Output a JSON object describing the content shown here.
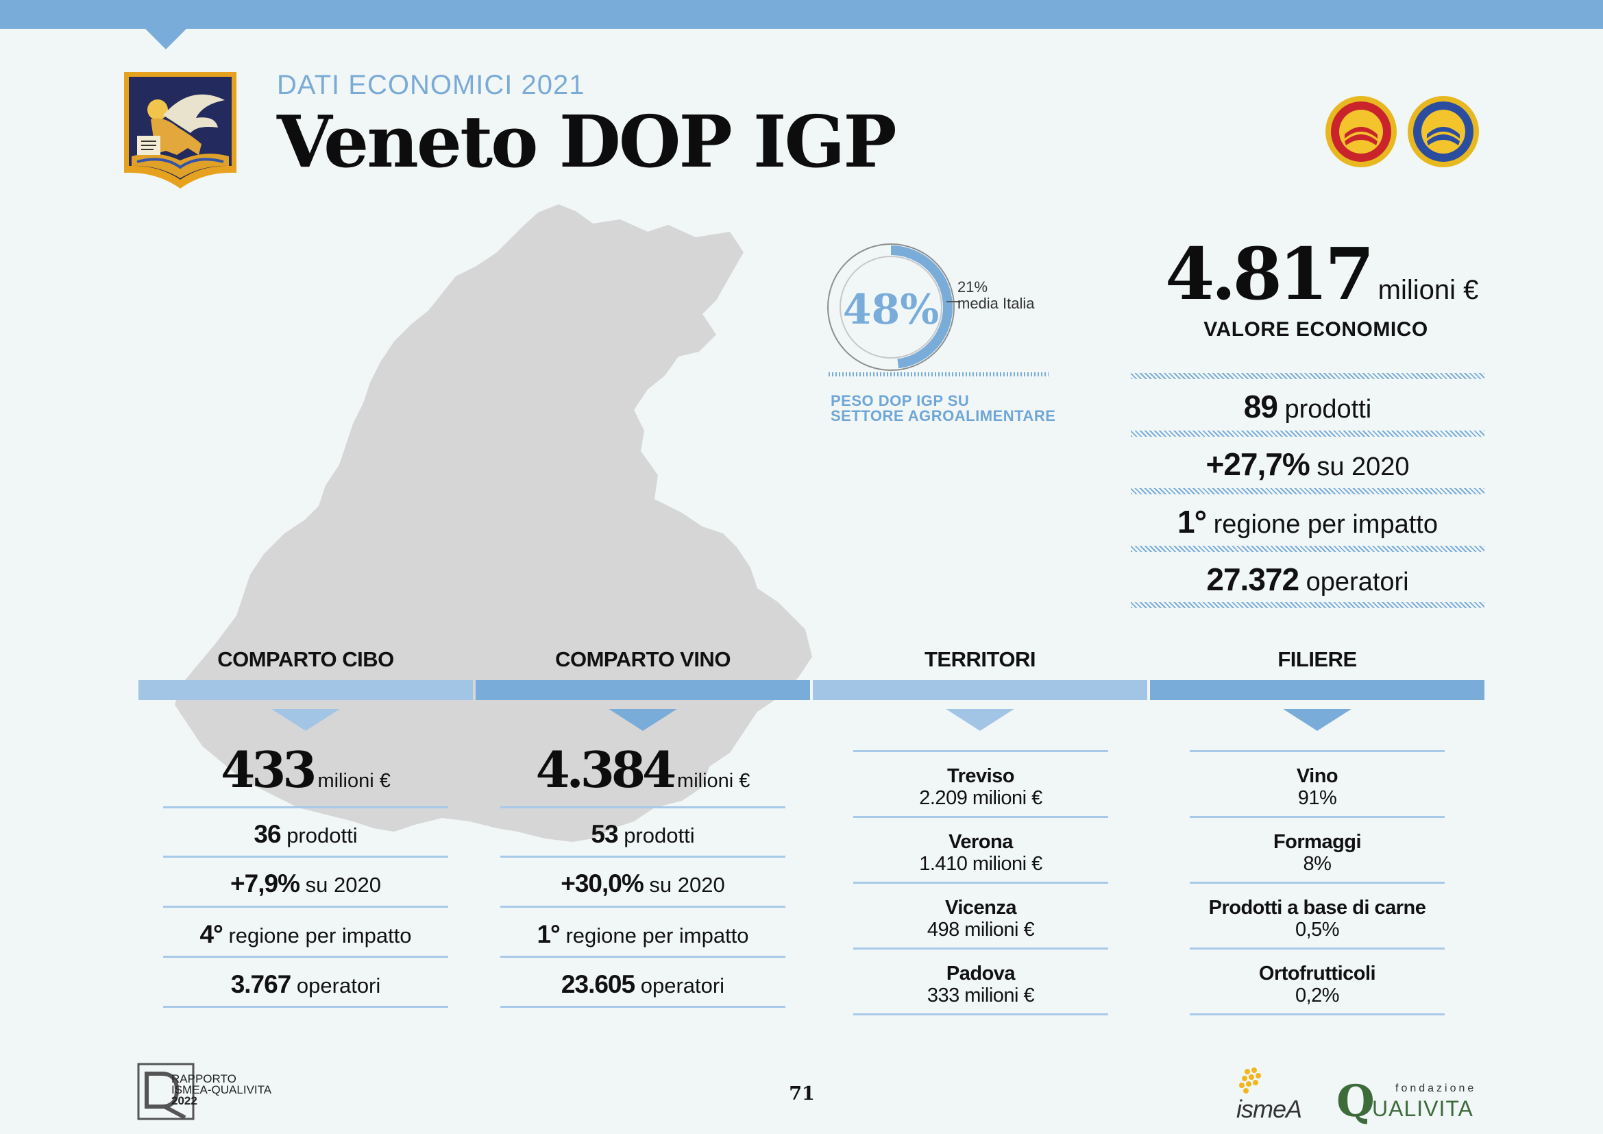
{
  "header": {
    "kicker": "DATI ECONOMICI 2021",
    "title": "Veneto DOP IGP"
  },
  "gauge": {
    "value_label": "48%",
    "value": 48,
    "italy_value_label": "21%",
    "italy_label": "media Italia",
    "caption_line1": "PESO DOP IGP SU",
    "caption_line2": "SETTORE AGROALIMENTARE"
  },
  "summary": {
    "value": "4.817",
    "unit": "milioni €",
    "caption": "VALORE ECONOMICO",
    "stats": [
      {
        "bold": "89",
        "rest": "prodotti"
      },
      {
        "bold": "+27,7%",
        "rest": "su 2020"
      },
      {
        "bold": "1°",
        "rest": "regione per impatto"
      },
      {
        "bold": "27.372",
        "rest": "operatori"
      }
    ]
  },
  "columns": {
    "cibo": {
      "title": "COMPARTO CIBO",
      "value": "433",
      "unit": "milioni €",
      "stats": [
        {
          "bold": "36",
          "rest": "prodotti"
        },
        {
          "bold": "+7,9%",
          "rest": "su 2020"
        },
        {
          "bold": "4°",
          "rest": "regione per impatto"
        },
        {
          "bold": "3.767",
          "rest": "operatori"
        }
      ]
    },
    "vino": {
      "title": "COMPARTO VINO",
      "value": "4.384",
      "unit": "milioni €",
      "stats": [
        {
          "bold": "53",
          "rest": "prodotti"
        },
        {
          "bold": "+30,0%",
          "rest": "su 2020"
        },
        {
          "bold": "1°",
          "rest": "regione per impatto"
        },
        {
          "bold": "23.605",
          "rest": "operatori"
        }
      ]
    },
    "territori": {
      "title": "TERRITORI",
      "items": [
        {
          "name": "Treviso",
          "value": "2.209 milioni €"
        },
        {
          "name": "Verona",
          "value": "1.410 milioni €"
        },
        {
          "name": "Vicenza",
          "value": "498 milioni €"
        },
        {
          "name": "Padova",
          "value": "333 milioni €"
        }
      ]
    },
    "filiere": {
      "title": "FILIERE",
      "items": [
        {
          "name": "Vino",
          "value": "91%"
        },
        {
          "name": "Formaggi",
          "value": "8%"
        },
        {
          "name": "Prodotti a base di carne",
          "value": "0,5%"
        },
        {
          "name": "Ortofrutticoli",
          "value": "0,2%"
        }
      ]
    }
  },
  "footer": {
    "report_line1": "RAPPORTO",
    "report_line2": "ISMEA-QUALIVITA",
    "report_line3": "2022",
    "page_number": "71",
    "ismea": "ismeA",
    "fondazione": "fondazione",
    "qualivita": "UALIVITA",
    "q_letter": "Q"
  },
  "colors": {
    "accent_blue": "#79acd9",
    "light_blue": "#a3c5e5",
    "map_gray": "#d6d6d6",
    "background": "#f1f6f7"
  }
}
